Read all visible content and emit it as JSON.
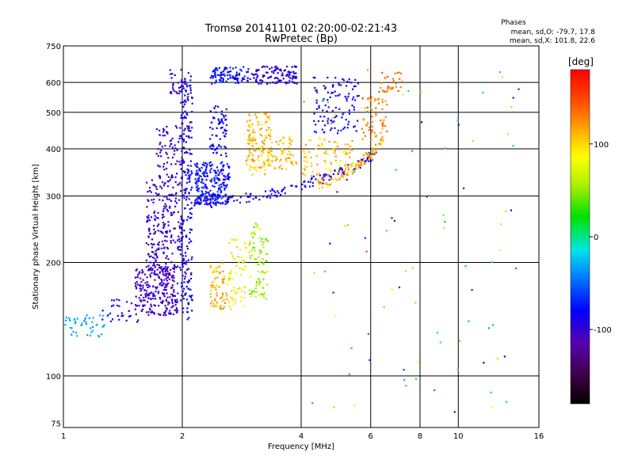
{
  "chart_data": {
    "type": "scatter",
    "title": "Tromsø 20141101 02:20:00-02:21:43",
    "subtitle": "RwPretec (Bp)",
    "xlabel": "Frequency [MHz]",
    "ylabel": "Stationary phase Virtual Height [km]",
    "x_scale": "log",
    "y_scale": "log",
    "xlim": [
      1,
      16
    ],
    "ylim": [
      73,
      750
    ],
    "x_ticks": [
      1,
      2,
      4,
      6,
      8,
      10,
      16
    ],
    "y_ticks": [
      75,
      100,
      200,
      300,
      400,
      500,
      600,
      750
    ],
    "grid": true,
    "stats": {
      "title": "Phases",
      "line_o": "mean, sd,O: -79.7, 17.8",
      "line_x": "mean, sd,X: 101.8, 22.6"
    },
    "colorbar": {
      "label": "[deg]",
      "range": [
        -180,
        180
      ],
      "ticks": [
        -100,
        0,
        100
      ],
      "colormap": "rainbow (black-purple-blue-cyan-green-yellow-red)"
    },
    "clusters": [
      {
        "x": [
          1.52,
          1.95
        ],
        "y": [
          145,
          195
        ],
        "n": 260,
        "phase": [
          -115,
          -95
        ]
      },
      {
        "x": [
          1.62,
          2.0
        ],
        "y": [
          190,
          340
        ],
        "n": 240,
        "phase": [
          -110,
          -90
        ]
      },
      {
        "x": [
          1.72,
          2.02
        ],
        "y": [
          340,
          460
        ],
        "n": 70,
        "phase": [
          -110,
          -90
        ]
      },
      {
        "x": [
          1.85,
          2.05
        ],
        "y": [
          560,
          650
        ],
        "n": 30,
        "phase": [
          -110,
          -95
        ]
      },
      {
        "x": [
          1.98,
          2.12
        ],
        "y": [
          140,
          640
        ],
        "n": 220,
        "phase": [
          -105,
          -70
        ]
      },
      {
        "x": [
          2.15,
          2.65
        ],
        "y": [
          285,
          370
        ],
        "n": 250,
        "phase": [
          -100,
          -60
        ]
      },
      {
        "x": [
          2.35,
          2.6
        ],
        "y": [
          380,
          520
        ],
        "n": 70,
        "phase": [
          -95,
          -70
        ]
      },
      {
        "x": [
          2.35,
          2.9
        ],
        "y": [
          595,
          660
        ],
        "n": 90,
        "phase": [
          -90,
          -65
        ]
      },
      {
        "x": [
          2.9,
          3.9
        ],
        "y": [
          595,
          665
        ],
        "n": 120,
        "phase": [
          -110,
          -80
        ]
      },
      {
        "x": [
          2.9,
          3.35
        ],
        "y": [
          340,
          500
        ],
        "n": 130,
        "phase": [
          85,
          130
        ]
      },
      {
        "x": [
          3.2,
          3.9
        ],
        "y": [
          350,
          430
        ],
        "n": 70,
        "phase": [
          90,
          125
        ]
      },
      {
        "x": [
          2.35,
          2.6
        ],
        "y": [
          150,
          200
        ],
        "n": 70,
        "phase": [
          90,
          130
        ]
      },
      {
        "x": [
          2.6,
          2.9
        ],
        "y": [
          150,
          230
        ],
        "n": 60,
        "phase": [
          60,
          110
        ]
      },
      {
        "x": [
          2.95,
          3.3
        ],
        "y": [
          160,
          260
        ],
        "n": 90,
        "phase": [
          30,
          75
        ]
      },
      {
        "x": [
          4.3,
          5.6
        ],
        "y": [
          440,
          620
        ],
        "n": 110,
        "phase": [
          -105,
          -70
        ]
      },
      {
        "x": [
          4.0,
          5.4
        ],
        "y": [
          340,
          430
        ],
        "n": 90,
        "phase": [
          80,
          130
        ]
      },
      {
        "x": [
          5.7,
          6.6
        ],
        "y": [
          420,
          560
        ],
        "n": 60,
        "phase": [
          110,
          150
        ]
      },
      {
        "x": [
          6.3,
          7.2
        ],
        "y": [
          560,
          640
        ],
        "n": 30,
        "phase": [
          120,
          150
        ]
      },
      {
        "x": [
          1.0,
          1.3
        ],
        "y": [
          127,
          145
        ],
        "n": 45,
        "phase": [
          -45,
          -25
        ]
      },
      {
        "x": [
          1.25,
          1.55
        ],
        "y": [
          138,
          160
        ],
        "n": 30,
        "phase": [
          -100,
          -70
        ]
      }
    ],
    "curves": [
      {
        "x": [
          2.1,
          2.4,
          2.8,
          3.3,
          3.8,
          4.3,
          4.8,
          5.3,
          5.8,
          6.2
        ],
        "y": [
          292,
          288,
          296,
          303,
          315,
          328,
          340,
          355,
          372,
          392
        ],
        "n": 150,
        "phase": [
          -110,
          -70
        ]
      },
      {
        "x": [
          4.4,
          4.8,
          5.2,
          5.6,
          6.0,
          6.4
        ],
        "y": [
          322,
          333,
          348,
          365,
          388,
          420
        ],
        "n": 90,
        "phase": [
          95,
          135
        ]
      }
    ],
    "scatter_noise": {
      "x": [
        4.0,
        14.5
      ],
      "y": [
        80,
        650
      ],
      "n": 90,
      "phase": [
        -120,
        150
      ]
    }
  }
}
